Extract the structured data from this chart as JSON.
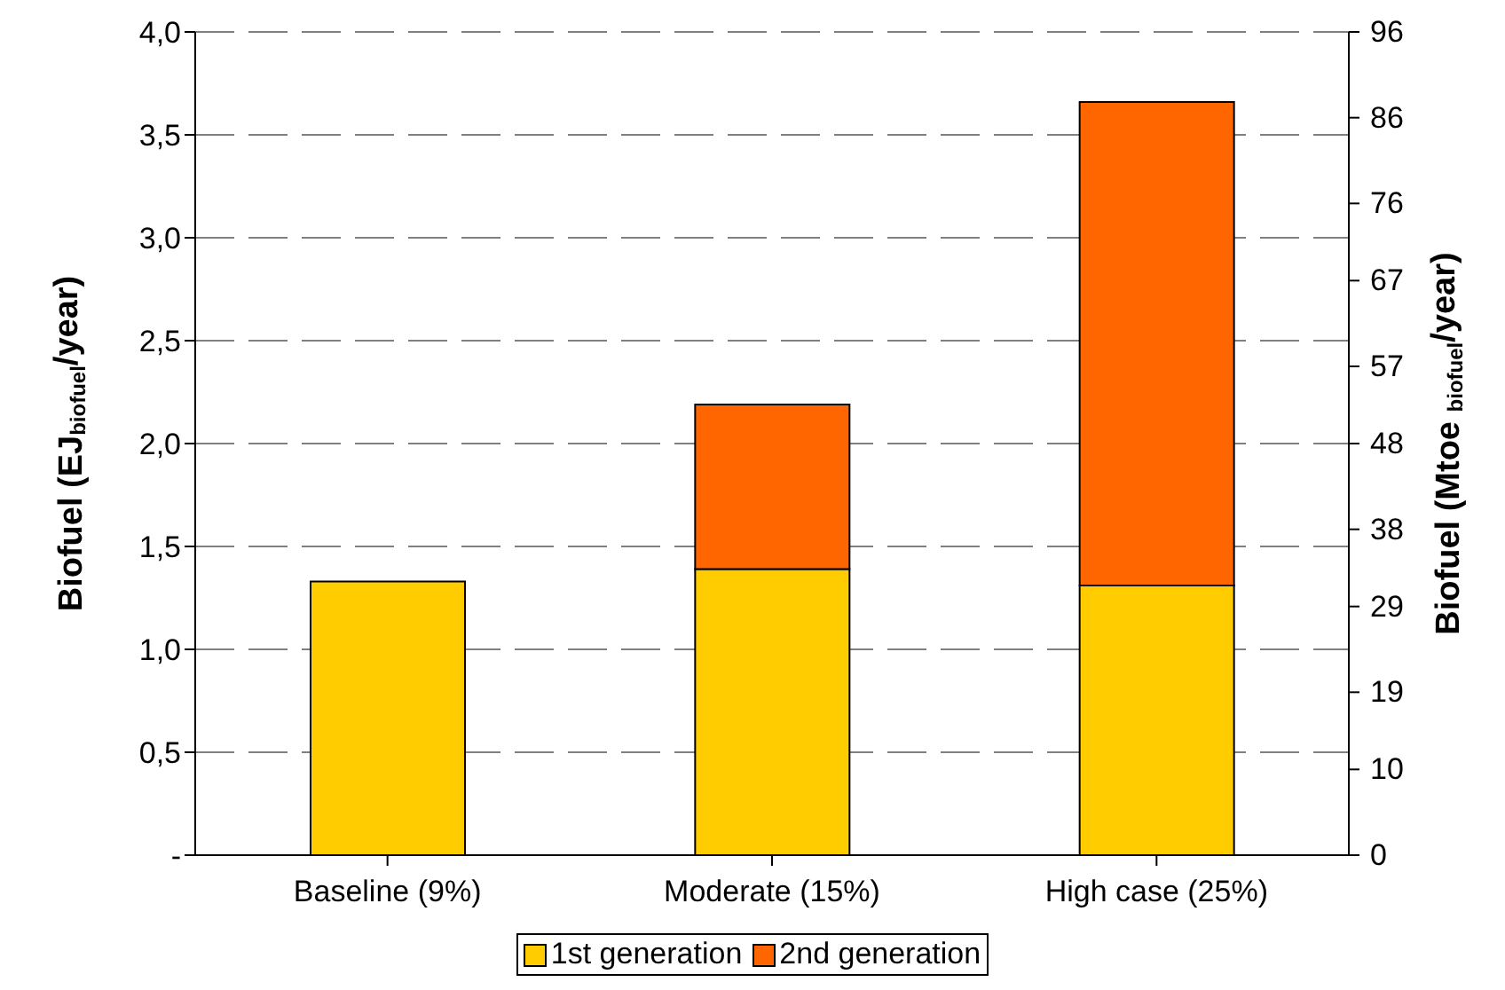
{
  "chart_data": {
    "type": "bar",
    "stacked": true,
    "categories": [
      "Baseline (9%)",
      "Moderate (15%)",
      "High case (25%)"
    ],
    "series": [
      {
        "name": "1st generation",
        "color": "#ffcc00",
        "values": [
          1.33,
          1.39,
          1.31
        ]
      },
      {
        "name": "2nd generation",
        "color": "#ff6600",
        "values": [
          0,
          0.8,
          2.35
        ]
      }
    ],
    "ylabel": "Biofuel (EJ$_{biofuel}$/year)",
    "y2label": "Biofuel (Mtoe $_{biofuel}$/year)",
    "ylim": [
      0,
      4
    ],
    "yticks": [
      {
        "value": 0,
        "label": "-"
      },
      {
        "value": 0.5,
        "label": "0,5"
      },
      {
        "value": 1,
        "label": "1,0"
      },
      {
        "value": 1.5,
        "label": "1,5"
      },
      {
        "value": 2,
        "label": "2,0"
      },
      {
        "value": 2.5,
        "label": "2,5"
      },
      {
        "value": 3,
        "label": "3,0"
      },
      {
        "value": 3.5,
        "label": "3,5"
      },
      {
        "value": 4,
        "label": "4,0"
      }
    ],
    "y2lim": [
      0,
      96
    ],
    "y2ticks": [
      0,
      10,
      19,
      29,
      38,
      48,
      57,
      67,
      76,
      86,
      96
    ],
    "grid": "y",
    "legend": "bottom"
  }
}
